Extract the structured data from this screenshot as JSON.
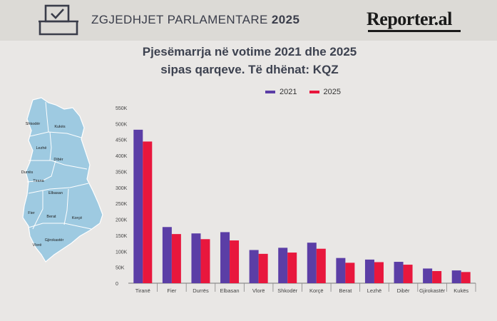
{
  "header": {
    "title_main": "ZGJEDHJET PARLAMENTARE ",
    "title_year": "2025",
    "logo": "Reporter.al"
  },
  "chart_title_line1": "Pjesëmarrja në votime 2021 dhe 2025",
  "chart_title_line2": "sipas qarqeve. Të dhënat: KQZ",
  "map_labels": [
    "Shkodër",
    "Kukës",
    "Lezhë",
    "Dibër",
    "Durrës",
    "Tirana",
    "Elbasan",
    "Fier",
    "Berat",
    "Korçë",
    "Vlorë",
    "Gjirokastër"
  ],
  "colors": {
    "series_2021": "#5b3ea6",
    "series_2025": "#e8173d",
    "map_fill": "#9ecae1",
    "map_stroke": "#ffffff"
  },
  "chart_data": {
    "type": "bar",
    "title": "Pjesëmarrja në votime 2021 dhe 2025 sipas qarqeve. Të dhënat: KQZ",
    "categories": [
      "Tiranë",
      "Fier",
      "Durrës",
      "Elbasan",
      "Vlorë",
      "Shkodër",
      "Korçë",
      "Berat",
      "Lezhë",
      "Dibër",
      "Gjirokastër",
      "Kukës"
    ],
    "series": [
      {
        "name": "2021",
        "values": [
          481000,
          176000,
          156000,
          160000,
          104000,
          111000,
          127000,
          79000,
          74000,
          67000,
          46000,
          40000
        ]
      },
      {
        "name": "2025",
        "values": [
          444000,
          154000,
          138000,
          134000,
          92000,
          96000,
          108000,
          64000,
          66000,
          58000,
          38000,
          35000
        ]
      }
    ],
    "yticks": [
      "0",
      "50K",
      "100K",
      "150K",
      "200K",
      "250K",
      "300K",
      "350K",
      "400K",
      "450K",
      "500K",
      "550K"
    ],
    "ylim": [
      0,
      550000
    ],
    "legend_position": "top",
    "grid": false
  }
}
